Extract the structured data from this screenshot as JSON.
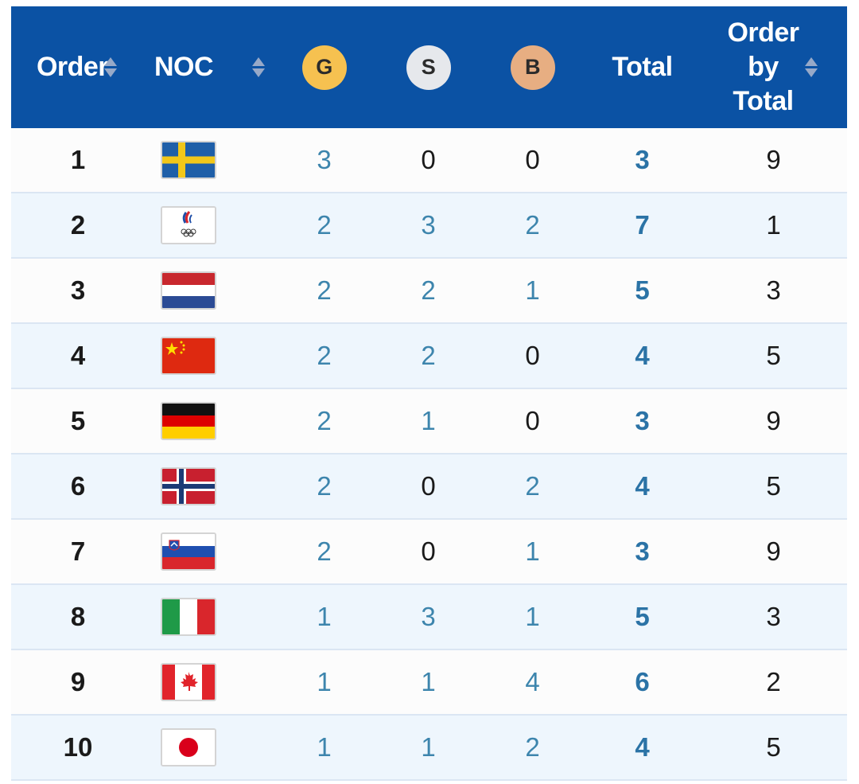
{
  "headers": {
    "order": "Order",
    "noc": "NOC",
    "gold": "G",
    "silver": "S",
    "bronze": "B",
    "total": "Total",
    "order_by_total": [
      "Order",
      "by",
      "Total"
    ]
  },
  "colors": {
    "header_bg": "#0b52a4",
    "gold": "#f6c150",
    "silver": "#e6e8ec",
    "bronze": "#e7ae82",
    "value_blue": "#3d85ad"
  },
  "rows": [
    {
      "order": "1",
      "flag": "sweden-flag-icon",
      "gold": "3",
      "silver": "0",
      "bronze": "0",
      "total": "3",
      "order_by_total": "9"
    },
    {
      "order": "2",
      "flag": "roc-flag-icon",
      "gold": "2",
      "silver": "3",
      "bronze": "2",
      "total": "7",
      "order_by_total": "1"
    },
    {
      "order": "3",
      "flag": "netherlands-flag-icon",
      "gold": "2",
      "silver": "2",
      "bronze": "1",
      "total": "5",
      "order_by_total": "3"
    },
    {
      "order": "4",
      "flag": "china-flag-icon",
      "gold": "2",
      "silver": "2",
      "bronze": "0",
      "total": "4",
      "order_by_total": "5"
    },
    {
      "order": "5",
      "flag": "germany-flag-icon",
      "gold": "2",
      "silver": "1",
      "bronze": "0",
      "total": "3",
      "order_by_total": "9"
    },
    {
      "order": "6",
      "flag": "norway-flag-icon",
      "gold": "2",
      "silver": "0",
      "bronze": "2",
      "total": "4",
      "order_by_total": "5"
    },
    {
      "order": "7",
      "flag": "slovenia-flag-icon",
      "gold": "2",
      "silver": "0",
      "bronze": "1",
      "total": "3",
      "order_by_total": "9"
    },
    {
      "order": "8",
      "flag": "italy-flag-icon",
      "gold": "1",
      "silver": "3",
      "bronze": "1",
      "total": "5",
      "order_by_total": "3"
    },
    {
      "order": "9",
      "flag": "canada-flag-icon",
      "gold": "1",
      "silver": "1",
      "bronze": "4",
      "total": "6",
      "order_by_total": "2"
    },
    {
      "order": "10",
      "flag": "japan-flag-icon",
      "gold": "1",
      "silver": "1",
      "bronze": "2",
      "total": "4",
      "order_by_total": "5"
    }
  ]
}
